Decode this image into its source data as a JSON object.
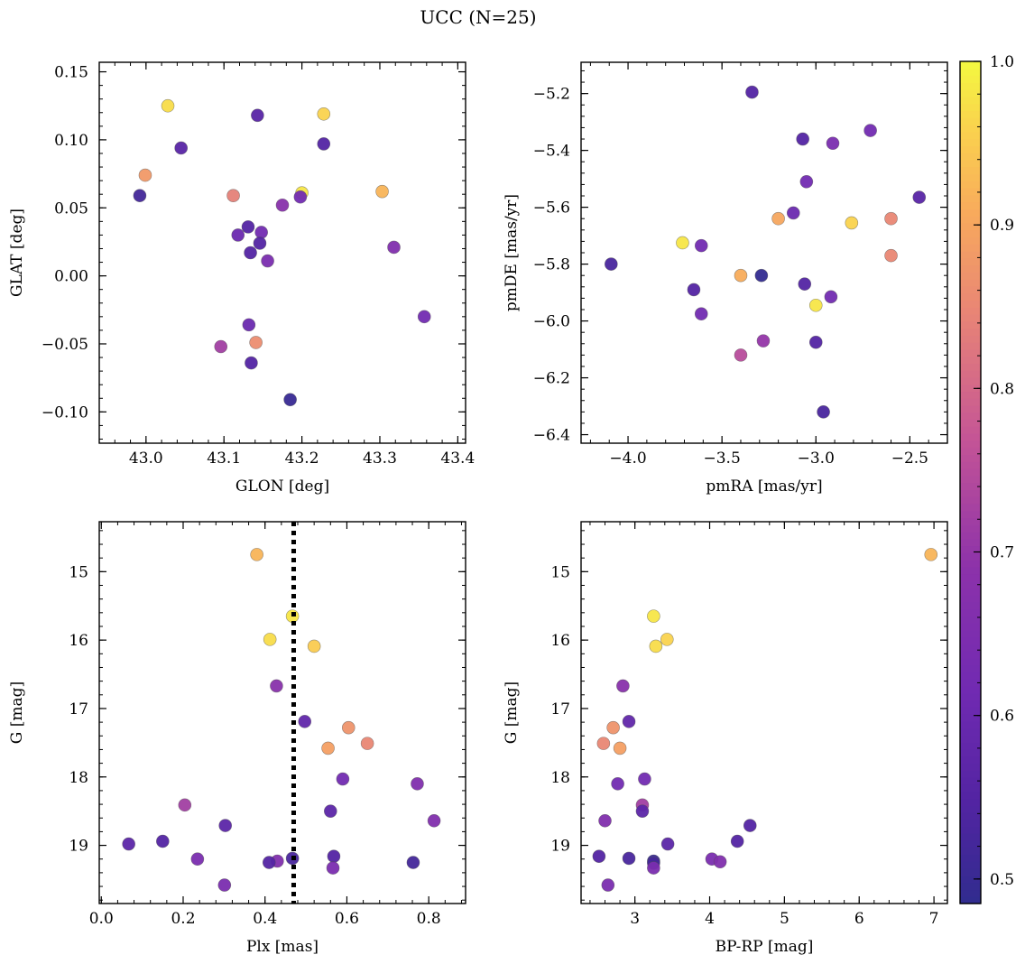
{
  "chart_data": {
    "title": "UCC (N=25)",
    "colorbar": {
      "range": [
        0.485,
        1.0
      ],
      "ticks": [
        0.5,
        0.6,
        0.7,
        0.8,
        0.9,
        1.0
      ],
      "colormap": "plasma",
      "label": ""
    },
    "panels": [
      {
        "type": "scatter",
        "xlabel": "GLON [deg]",
        "ylabel": "GLAT [deg]",
        "xlim": [
          42.94,
          43.41
        ],
        "ylim": [
          -0.123,
          0.157
        ],
        "xticks": [
          43.0,
          43.1,
          43.2,
          43.3,
          43.4
        ],
        "yticks": [
          -0.1,
          -0.05,
          0.0,
          0.05,
          0.1,
          0.15
        ],
        "xdecimals": 1,
        "ydecimals": 2,
        "points": [
          {
            "x": 43.028,
            "y": 0.125,
            "c": 0.97
          },
          {
            "x": 43.228,
            "y": 0.119,
            "c": 0.96
          },
          {
            "x": 43.143,
            "y": 0.118,
            "c": 0.56
          },
          {
            "x": 43.228,
            "y": 0.097,
            "c": 0.55
          },
          {
            "x": 43.045,
            "y": 0.094,
            "c": 0.56
          },
          {
            "x": 42.999,
            "y": 0.074,
            "c": 0.88
          },
          {
            "x": 43.303,
            "y": 0.062,
            "c": 0.92
          },
          {
            "x": 43.2,
            "y": 0.061,
            "c": 0.98
          },
          {
            "x": 42.992,
            "y": 0.059,
            "c": 0.52
          },
          {
            "x": 43.112,
            "y": 0.059,
            "c": 0.84
          },
          {
            "x": 43.198,
            "y": 0.058,
            "c": 0.62
          },
          {
            "x": 43.175,
            "y": 0.052,
            "c": 0.68
          },
          {
            "x": 43.131,
            "y": 0.036,
            "c": 0.55
          },
          {
            "x": 43.148,
            "y": 0.032,
            "c": 0.62
          },
          {
            "x": 43.118,
            "y": 0.03,
            "c": 0.6
          },
          {
            "x": 43.146,
            "y": 0.024,
            "c": 0.55
          },
          {
            "x": 43.318,
            "y": 0.021,
            "c": 0.66
          },
          {
            "x": 43.134,
            "y": 0.017,
            "c": 0.55
          },
          {
            "x": 43.156,
            "y": 0.011,
            "c": 0.64
          },
          {
            "x": 43.357,
            "y": -0.03,
            "c": 0.62
          },
          {
            "x": 43.132,
            "y": -0.036,
            "c": 0.6
          },
          {
            "x": 43.141,
            "y": -0.049,
            "c": 0.86
          },
          {
            "x": 43.096,
            "y": -0.052,
            "c": 0.72
          },
          {
            "x": 43.135,
            "y": -0.064,
            "c": 0.55
          },
          {
            "x": 43.185,
            "y": -0.091,
            "c": 0.5
          }
        ]
      },
      {
        "type": "scatter",
        "xlabel": "pmRA [mas/yr]",
        "ylabel": "pmDE [mas/yr]",
        "xlim": [
          -4.25,
          -2.3
        ],
        "ylim": [
          -6.43,
          -5.09
        ],
        "xticks": [
          -4.0,
          -3.5,
          -3.0,
          -2.5
        ],
        "yticks": [
          -6.4,
          -6.2,
          -6.0,
          -5.8,
          -5.6,
          -5.4,
          -5.2
        ],
        "xdecimals": 1,
        "ydecimals": 1,
        "points": [
          {
            "x": -3.34,
            "y": -5.195,
            "c": 0.55
          },
          {
            "x": -2.71,
            "y": -5.33,
            "c": 0.62
          },
          {
            "x": -3.07,
            "y": -5.36,
            "c": 0.55
          },
          {
            "x": -2.91,
            "y": -5.375,
            "c": 0.64
          },
          {
            "x": -3.05,
            "y": -5.51,
            "c": 0.62
          },
          {
            "x": -2.45,
            "y": -5.565,
            "c": 0.56
          },
          {
            "x": -3.12,
            "y": -5.62,
            "c": 0.6
          },
          {
            "x": -3.2,
            "y": -5.64,
            "c": 0.9
          },
          {
            "x": -2.6,
            "y": -5.64,
            "c": 0.85
          },
          {
            "x": -2.81,
            "y": -5.655,
            "c": 0.96
          },
          {
            "x": -3.71,
            "y": -5.725,
            "c": 0.98
          },
          {
            "x": -3.61,
            "y": -5.735,
            "c": 0.62
          },
          {
            "x": -2.6,
            "y": -5.77,
            "c": 0.85
          },
          {
            "x": -4.09,
            "y": -5.8,
            "c": 0.53
          },
          {
            "x": -3.4,
            "y": -5.84,
            "c": 0.91
          },
          {
            "x": -3.29,
            "y": -5.84,
            "c": 0.49
          },
          {
            "x": -3.06,
            "y": -5.87,
            "c": 0.55
          },
          {
            "x": -3.65,
            "y": -5.89,
            "c": 0.55
          },
          {
            "x": -2.92,
            "y": -5.915,
            "c": 0.62
          },
          {
            "x": -3.0,
            "y": -5.945,
            "c": 0.98
          },
          {
            "x": -3.61,
            "y": -5.975,
            "c": 0.62
          },
          {
            "x": -3.28,
            "y": -6.07,
            "c": 0.7
          },
          {
            "x": -3.0,
            "y": -6.075,
            "c": 0.55
          },
          {
            "x": -3.4,
            "y": -6.12,
            "c": 0.75
          },
          {
            "x": -2.96,
            "y": -6.32,
            "c": 0.53
          }
        ]
      },
      {
        "type": "scatter",
        "xlabel": "Plx [mas]",
        "ylabel": "G [mag]",
        "xlim": [
          -0.005,
          0.89
        ],
        "ylim": [
          19.85,
          14.27
        ],
        "xticks": [
          0.0,
          0.2,
          0.4,
          0.6,
          0.8
        ],
        "yticks": [
          15,
          16,
          17,
          18,
          19
        ],
        "xdecimals": 1,
        "ydecimals": 0,
        "vline": 0.47,
        "points": [
          {
            "x": 0.38,
            "y": 14.75,
            "c": 0.92
          },
          {
            "x": 0.467,
            "y": 15.65,
            "c": 0.98
          },
          {
            "x": 0.412,
            "y": 15.99,
            "c": 0.97
          },
          {
            "x": 0.52,
            "y": 16.09,
            "c": 0.95
          },
          {
            "x": 0.428,
            "y": 16.67,
            "c": 0.68
          },
          {
            "x": 0.497,
            "y": 17.19,
            "c": 0.58
          },
          {
            "x": 0.604,
            "y": 17.28,
            "c": 0.87
          },
          {
            "x": 0.65,
            "y": 17.51,
            "c": 0.85
          },
          {
            "x": 0.554,
            "y": 17.58,
            "c": 0.89
          },
          {
            "x": 0.59,
            "y": 18.03,
            "c": 0.62
          },
          {
            "x": 0.772,
            "y": 18.1,
            "c": 0.66
          },
          {
            "x": 0.204,
            "y": 18.41,
            "c": 0.72
          },
          {
            "x": 0.56,
            "y": 18.5,
            "c": 0.57
          },
          {
            "x": 0.813,
            "y": 18.64,
            "c": 0.66
          },
          {
            "x": 0.303,
            "y": 18.71,
            "c": 0.57
          },
          {
            "x": 0.15,
            "y": 18.94,
            "c": 0.55
          },
          {
            "x": 0.067,
            "y": 18.98,
            "c": 0.57
          },
          {
            "x": 0.568,
            "y": 19.16,
            "c": 0.55
          },
          {
            "x": 0.467,
            "y": 19.19,
            "c": 0.53
          },
          {
            "x": 0.235,
            "y": 19.2,
            "c": 0.64
          },
          {
            "x": 0.43,
            "y": 19.23,
            "c": 0.66
          },
          {
            "x": 0.41,
            "y": 19.25,
            "c": 0.55
          },
          {
            "x": 0.762,
            "y": 19.25,
            "c": 0.52
          },
          {
            "x": 0.566,
            "y": 19.33,
            "c": 0.64
          },
          {
            "x": 0.301,
            "y": 19.58,
            "c": 0.64
          }
        ]
      },
      {
        "type": "scatter",
        "xlabel": "BP-RP [mag]",
        "ylabel": "G [mag]",
        "xlim": [
          2.28,
          7.18
        ],
        "ylim": [
          19.85,
          14.27
        ],
        "xticks": [
          3,
          4,
          5,
          6,
          7
        ],
        "yticks": [
          15,
          16,
          17,
          18,
          19
        ],
        "xdecimals": 0,
        "ydecimals": 0,
        "points": [
          {
            "x": 6.96,
            "y": 14.75,
            "c": 0.92
          },
          {
            "x": 3.25,
            "y": 15.65,
            "c": 0.98
          },
          {
            "x": 3.43,
            "y": 15.99,
            "c": 0.96
          },
          {
            "x": 3.28,
            "y": 16.09,
            "c": 0.97
          },
          {
            "x": 2.84,
            "y": 16.67,
            "c": 0.68
          },
          {
            "x": 2.92,
            "y": 17.19,
            "c": 0.58
          },
          {
            "x": 2.71,
            "y": 17.28,
            "c": 0.87
          },
          {
            "x": 2.58,
            "y": 17.51,
            "c": 0.85
          },
          {
            "x": 2.8,
            "y": 17.58,
            "c": 0.89
          },
          {
            "x": 3.13,
            "y": 18.03,
            "c": 0.62
          },
          {
            "x": 2.77,
            "y": 18.1,
            "c": 0.62
          },
          {
            "x": 3.1,
            "y": 18.41,
            "c": 0.72
          },
          {
            "x": 3.1,
            "y": 18.5,
            "c": 0.57
          },
          {
            "x": 2.6,
            "y": 18.64,
            "c": 0.66
          },
          {
            "x": 4.54,
            "y": 18.71,
            "c": 0.55
          },
          {
            "x": 4.37,
            "y": 18.94,
            "c": 0.55
          },
          {
            "x": 3.44,
            "y": 18.98,
            "c": 0.57
          },
          {
            "x": 2.52,
            "y": 19.16,
            "c": 0.55
          },
          {
            "x": 2.92,
            "y": 19.19,
            "c": 0.53
          },
          {
            "x": 4.03,
            "y": 19.2,
            "c": 0.64
          },
          {
            "x": 3.25,
            "y": 19.23,
            "c": 0.5
          },
          {
            "x": 4.14,
            "y": 19.24,
            "c": 0.66
          },
          {
            "x": 3.25,
            "y": 19.26,
            "c": 0.52
          },
          {
            "x": 3.25,
            "y": 19.33,
            "c": 0.64
          },
          {
            "x": 2.64,
            "y": 19.58,
            "c": 0.64
          }
        ]
      }
    ]
  }
}
